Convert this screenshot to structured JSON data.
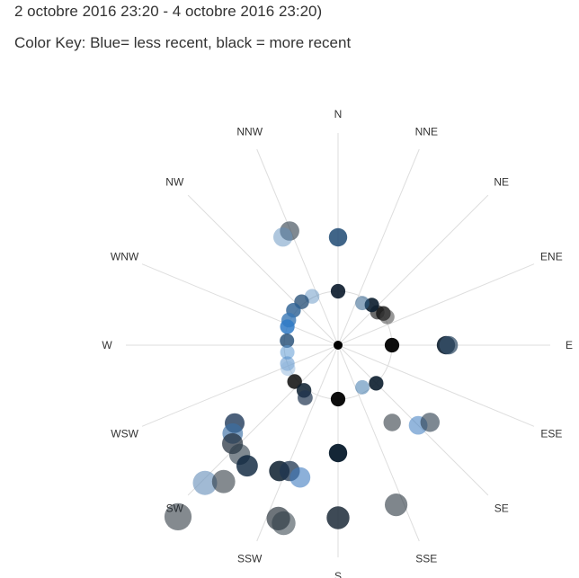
{
  "chart_data": {
    "type": "scatter",
    "title": "2 octobre 2016 23:20 - 4 octobre 2016 23:20)",
    "subtitle": "Color Key: Blue= less recent, black = more recent",
    "directions": [
      "N",
      "NNE",
      "NE",
      "ENE",
      "E",
      "ESE",
      "SE",
      "SSE",
      "S",
      "SSW",
      "SW",
      "WSW",
      "W",
      "WNW",
      "NW",
      "NNW"
    ],
    "points": [
      {
        "angle": 0,
        "r": 2,
        "color": "#0a1a2b",
        "opacity": 0.9
      },
      {
        "angle": 0,
        "r": 4,
        "color": "#1f4a73",
        "opacity": 0.85
      },
      {
        "angle": 180,
        "r": 2,
        "color": "#000000",
        "opacity": 0.95
      },
      {
        "angle": 180,
        "r": 4,
        "color": "#071a2b",
        "opacity": 0.95
      },
      {
        "angle": 180,
        "r": 6.4,
        "color": "#1c2a38",
        "opacity": 0.85
      },
      {
        "angle": 90,
        "r": 2,
        "color": "#000000",
        "opacity": 0.95
      },
      {
        "angle": 90,
        "r": 4,
        "color": "#0b1d2e",
        "opacity": 0.9
      },
      {
        "angle": 90,
        "r": 4.1,
        "color": "#37516b",
        "opacity": 0.75
      },
      {
        "angle": 50,
        "r": 1.9,
        "color": "#2c2c2c",
        "opacity": 0.7
      },
      {
        "angle": 55,
        "r": 2.05,
        "color": "#111111",
        "opacity": 0.8
      },
      {
        "angle": 60,
        "r": 2.1,
        "color": "#444444",
        "opacity": 0.55
      },
      {
        "angle": 40,
        "r": 1.95,
        "color": "#0b1d2e",
        "opacity": 0.9
      },
      {
        "angle": 30,
        "r": 1.8,
        "color": "#2e5e8a",
        "opacity": 0.55
      },
      {
        "angle": 135,
        "r": 2,
        "color": "#0b1d2e",
        "opacity": 0.9
      },
      {
        "angle": 150,
        "r": 1.8,
        "color": "#2e6ea6",
        "opacity": 0.5
      },
      {
        "angle": 135,
        "r": 4.2,
        "color": "#3a7ac0",
        "opacity": 0.55
      },
      {
        "angle": 130,
        "r": 4.45,
        "color": "#27384a",
        "opacity": 0.6
      },
      {
        "angle": 145,
        "r": 3.5,
        "color": "#1f2a33",
        "opacity": 0.55
      },
      {
        "angle": 160,
        "r": 6.3,
        "color": "#2a3640",
        "opacity": 0.6
      },
      {
        "angle": 332,
        "r": 2.05,
        "color": "#3a78b5",
        "opacity": 0.4
      },
      {
        "angle": 320,
        "r": 2.1,
        "color": "#1f4a73",
        "opacity": 0.75
      },
      {
        "angle": 308,
        "r": 2.1,
        "color": "#2b5f92",
        "opacity": 0.8
      },
      {
        "angle": 297,
        "r": 2.05,
        "color": "#3a78b5",
        "opacity": 0.8
      },
      {
        "angle": 290,
        "r": 2.0,
        "color": "#2f7ac7",
        "opacity": 0.85
      },
      {
        "angle": 275,
        "r": 1.9,
        "color": "#1f4a73",
        "opacity": 0.8
      },
      {
        "angle": 262,
        "r": 1.9,
        "color": "#5f9bd3",
        "opacity": 0.55
      },
      {
        "angle": 250,
        "r": 2.0,
        "color": "#4a88c8",
        "opacity": 0.5
      },
      {
        "angle": 245,
        "r": 2.05,
        "color": "#8fb6db",
        "opacity": 0.5
      },
      {
        "angle": 230,
        "r": 2.1,
        "color": "#0a0a0a",
        "opacity": 0.85
      },
      {
        "angle": 217,
        "r": 2.1,
        "color": "#0b1d2e",
        "opacity": 0.85
      },
      {
        "angle": 212,
        "r": 2.3,
        "color": "#1f3550",
        "opacity": 0.7
      },
      {
        "angle": 337,
        "r": 4.6,
        "color": "#2c3a48",
        "opacity": 0.6
      },
      {
        "angle": 333,
        "r": 4.5,
        "color": "#5f8fbd",
        "opacity": 0.5
      },
      {
        "angle": 233,
        "r": 4.8,
        "color": "#1f3a5a",
        "opacity": 0.8
      },
      {
        "angle": 230,
        "r": 5.1,
        "color": "#3a6fa5",
        "opacity": 0.65
      },
      {
        "angle": 227,
        "r": 5.35,
        "color": "#1c2a38",
        "opacity": 0.7
      },
      {
        "angle": 222,
        "r": 5.45,
        "color": "#2a3a48",
        "opacity": 0.6
      },
      {
        "angle": 217,
        "r": 5.6,
        "color": "#08203a",
        "opacity": 0.8
      },
      {
        "angle": 205,
        "r": 5.15,
        "color": "#0b1d2e",
        "opacity": 0.85
      },
      {
        "angle": 201,
        "r": 5.0,
        "color": "#1f3550",
        "opacity": 0.75
      },
      {
        "angle": 196,
        "r": 5.1,
        "color": "#3f7bc0",
        "opacity": 0.6
      },
      {
        "angle": 199,
        "r": 6.8,
        "color": "#1f2a33",
        "opacity": 0.65
      },
      {
        "angle": 197,
        "r": 6.9,
        "color": "#2c3a44",
        "opacity": 0.55
      },
      {
        "angle": 224,
        "r": 7.1,
        "color": "#6f95bd",
        "opacity": 0.65
      },
      {
        "angle": 220,
        "r": 6.6,
        "color": "#1f2a33",
        "opacity": 0.55
      },
      {
        "angle": 223,
        "r": 8.7,
        "color": "#1f2a33",
        "opacity": 0.55
      }
    ]
  }
}
